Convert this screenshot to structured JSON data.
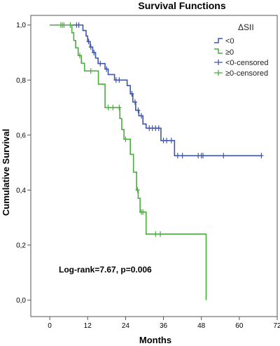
{
  "chart_data": {
    "type": "line",
    "title": "Survival Functions",
    "xlabel": "Months",
    "ylabel": "Cumulative Survival",
    "xlim": [
      -6,
      72
    ],
    "ylim": [
      -0.06,
      1.035
    ],
    "x_ticks": [
      0,
      12,
      24,
      36,
      48,
      60,
      72
    ],
    "x_tick_labels": [
      "0",
      "12",
      "24",
      "36",
      "48",
      "60",
      "72"
    ],
    "y_ticks": [
      0.0,
      0.2,
      0.4,
      0.6,
      0.8,
      1.0
    ],
    "y_tick_labels": [
      "0,0",
      "0,2",
      "0,4",
      "0,6",
      "0,8",
      "1,0"
    ],
    "grid": false,
    "legend": {
      "title": "ΔSII",
      "placement": "top-right",
      "entries": [
        "<0",
        "≥0",
        "<0-censored",
        "≥0-censored"
      ]
    },
    "annotation": "Log-rank=7.67, p=0.006",
    "colors": {
      "lt0": "#3f56a8",
      "ge0": "#4aab3f",
      "frame": "#555555"
    },
    "series": [
      {
        "name": "<0",
        "color_key": "lt0",
        "steps": [
          [
            0,
            1.0
          ],
          [
            10.5,
            0.98
          ],
          [
            11.5,
            0.96
          ],
          [
            12,
            0.94
          ],
          [
            12.8,
            0.92
          ],
          [
            13.6,
            0.9
          ],
          [
            14.5,
            0.88
          ],
          [
            15.3,
            0.86
          ],
          [
            17.5,
            0.84
          ],
          [
            18.5,
            0.82
          ],
          [
            20.5,
            0.8
          ],
          [
            24.5,
            0.78
          ],
          [
            25.5,
            0.75
          ],
          [
            26.3,
            0.72
          ],
          [
            27.2,
            0.69
          ],
          [
            28.2,
            0.67
          ],
          [
            29.5,
            0.64
          ],
          [
            30.5,
            0.625
          ],
          [
            35.2,
            0.58
          ],
          [
            39.5,
            0.525
          ],
          [
            67,
            0.525
          ]
        ],
        "censored": [
          [
            8.5,
            1.0
          ],
          [
            9.2,
            1.0
          ],
          [
            12.3,
            0.94
          ],
          [
            13,
            0.92
          ],
          [
            14,
            0.9
          ],
          [
            16,
            0.86
          ],
          [
            18,
            0.84
          ],
          [
            21,
            0.8
          ],
          [
            22,
            0.8
          ],
          [
            26,
            0.75
          ],
          [
            27,
            0.72
          ],
          [
            28,
            0.69
          ],
          [
            29,
            0.67
          ],
          [
            31.5,
            0.625
          ],
          [
            32.5,
            0.625
          ],
          [
            33.5,
            0.625
          ],
          [
            34.5,
            0.625
          ],
          [
            36,
            0.58
          ],
          [
            37,
            0.58
          ],
          [
            38.5,
            0.58
          ],
          [
            40.5,
            0.525
          ],
          [
            42,
            0.525
          ],
          [
            47,
            0.525
          ],
          [
            48,
            0.525
          ],
          [
            48.5,
            0.525
          ],
          [
            55,
            0.525
          ],
          [
            67,
            0.525
          ]
        ]
      },
      {
        "name": "≥0",
        "color_key": "ge0",
        "steps": [
          [
            0,
            1.0
          ],
          [
            7,
            0.972
          ],
          [
            7.6,
            0.944
          ],
          [
            8.2,
            0.917
          ],
          [
            9,
            0.889
          ],
          [
            10,
            0.861
          ],
          [
            11,
            0.833
          ],
          [
            15.4,
            0.785
          ],
          [
            17.5,
            0.7
          ],
          [
            22.2,
            0.66
          ],
          [
            22.8,
            0.62
          ],
          [
            23.5,
            0.585
          ],
          [
            25.5,
            0.53
          ],
          [
            26.5,
            0.465
          ],
          [
            27.5,
            0.4
          ],
          [
            28,
            0.37
          ],
          [
            28.6,
            0.32
          ],
          [
            30.5,
            0.24
          ],
          [
            49.5,
            0.0
          ]
        ],
        "censored": [
          [
            3.5,
            1.0
          ],
          [
            4,
            1.0
          ],
          [
            4.5,
            1.0
          ],
          [
            6.5,
            1.0
          ],
          [
            9.5,
            0.889
          ],
          [
            13,
            0.833
          ],
          [
            18.5,
            0.7
          ],
          [
            20,
            0.7
          ],
          [
            22,
            0.7
          ],
          [
            24,
            0.585
          ],
          [
            27.8,
            0.4
          ],
          [
            29,
            0.32
          ],
          [
            29.5,
            0.32
          ],
          [
            33.5,
            0.24
          ],
          [
            35,
            0.24
          ]
        ]
      }
    ]
  }
}
